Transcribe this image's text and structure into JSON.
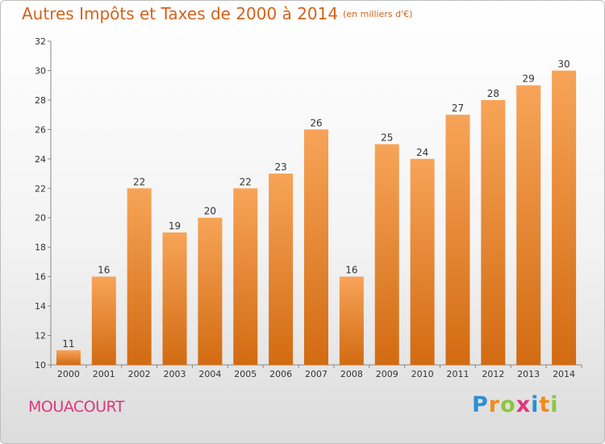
{
  "title": "Autres Impôts et Taxes de 2000 à 2014",
  "unit": "(en milliers d'€)",
  "city": "MOUACOURT",
  "logo": {
    "text": "Proxiti",
    "letters": [
      {
        "ch": "P",
        "color": "#2b8fd6"
      },
      {
        "ch": "r",
        "color": "#f08a1c"
      },
      {
        "ch": "o",
        "color": "#8cc63f"
      },
      {
        "ch": "x",
        "color": "#e0367a"
      },
      {
        "ch": "i",
        "color": "#2b8fd6"
      },
      {
        "ch": "t",
        "color": "#f08a1c"
      },
      {
        "ch": "i",
        "color": "#8cc63f"
      }
    ]
  },
  "colors": {
    "bar_light": "#f7a458",
    "bar_dark": "#d26b12",
    "title": "#d4621a",
    "city": "#e0367a"
  },
  "chart_data": {
    "type": "bar",
    "title": "Autres Impôts et Taxes de 2000 à 2014",
    "ylabel": "",
    "xlabel": "",
    "categories": [
      "2000",
      "2001",
      "2002",
      "2003",
      "2004",
      "2005",
      "2006",
      "2007",
      "2008",
      "2009",
      "2010",
      "2011",
      "2012",
      "2013",
      "2014"
    ],
    "values": [
      11,
      16,
      22,
      19,
      20,
      22,
      23,
      26,
      16,
      25,
      24,
      27,
      28,
      29,
      30
    ],
    "ylim": [
      10,
      32
    ],
    "yticks": [
      10,
      12,
      14,
      16,
      18,
      20,
      22,
      24,
      26,
      28,
      30,
      32
    ],
    "grid": false,
    "legend": "none"
  }
}
